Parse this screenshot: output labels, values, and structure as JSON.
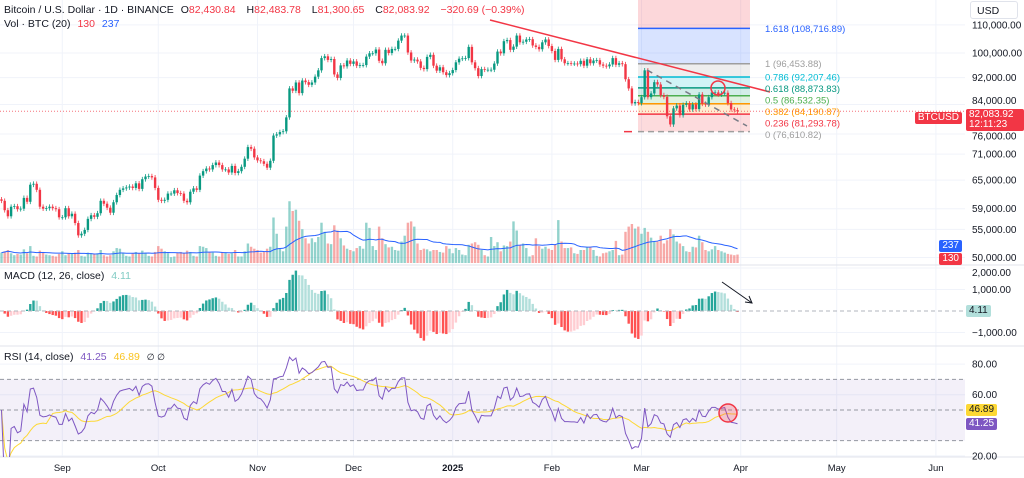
{
  "header": {
    "symbol": "Bitcoin / U.S. Dollar · 1D · BINANCE",
    "open_label": "O",
    "open": "82,430.84",
    "high_label": "H",
    "high": "82,483.78",
    "low_label": "L",
    "low": "81,300.65",
    "close_label": "C",
    "close": "82,083.92",
    "change": "−320.69 (−0.39%)",
    "vol_label": "Vol · BTC (20)",
    "vol_value": "130",
    "vol_ma": "237"
  },
  "currency_button": "USD",
  "price_tag": {
    "symbol": "BTCUSD",
    "price": "82,083.92",
    "countdown": "12:11:23"
  },
  "macd": {
    "label": "MACD (12, 26, close)",
    "value": "4.11",
    "axis": [
      "2,000.00",
      "1,000.00",
      "−1,000.00"
    ],
    "axis_values": [
      2000,
      1000,
      -1000
    ]
  },
  "rsi": {
    "label": "RSI (14, close)",
    "value": "41.25",
    "ma_value": "46.89",
    "extra": "∅ ∅",
    "axis": [
      "80.00",
      "60.00",
      "20.00"
    ],
    "axis_values": [
      80,
      60,
      20
    ],
    "bands": [
      70,
      50,
      30
    ]
  },
  "colors": {
    "up": "#089981",
    "down": "#f23645",
    "vol_ma": "#2962ff",
    "rsi": "#7e57c2",
    "rsi_ma": "#fdd835",
    "trendline": "#f23645"
  },
  "fib": {
    "levels": [
      {
        "ratio": "1.618",
        "price": 108716.89,
        "label": "1.618 (108,716.89)",
        "color": "#2962ff"
      },
      {
        "ratio": "1",
        "price": 96453.88,
        "label": "1 (96,453.88)",
        "color": "#9e9e9e"
      },
      {
        "ratio": "0.786",
        "price": 92207.46,
        "label": "0.786 (92,207.46)",
        "color": "#00bcd4"
      },
      {
        "ratio": "0.618",
        "price": 88873.83,
        "label": "0.618 (88,873.83)",
        "color": "#089981"
      },
      {
        "ratio": "0.5",
        "price": 86532.35,
        "label": "0.5 (86,532.35)",
        "color": "#4caf50"
      },
      {
        "ratio": "0.382",
        "price": 84190.87,
        "label": "0.382 (84,190.87)",
        "color": "#ff9800"
      },
      {
        "ratio": "0.236",
        "price": 81293.78,
        "label": "0.236 (81,293.78)",
        "color": "#f23645"
      },
      {
        "ratio": "0",
        "price": 76610.82,
        "label": "0 (76,610.82)",
        "color": "#9e9e9e"
      }
    ]
  },
  "chart_data": {
    "type": "candlestick",
    "title": "Bitcoin / U.S. Dollar · 1D · BINANCE",
    "start_date": "2024-08-13",
    "end_date": "2025-03-31",
    "y_scale": "log",
    "ylim": [
      48000,
      125000
    ],
    "grid": true,
    "price_ticks": [
      110000,
      100000,
      92000,
      84000,
      76000,
      71000,
      65000,
      59000,
      55000,
      50000
    ],
    "price_tick_labels": [
      "110,000.00",
      "100,000.00",
      "92,000.00",
      "84,000.00",
      "76,000.00",
      "71,000.00",
      "65,000.00",
      "59,000.00",
      "55,000.00",
      "50,000.00"
    ],
    "x_ticks": [
      {
        "label": "Sep",
        "date": "2024-09-01"
      },
      {
        "label": "Oct",
        "date": "2024-10-01"
      },
      {
        "label": "Nov",
        "date": "2024-11-01"
      },
      {
        "label": "Dec",
        "date": "2024-12-01"
      },
      {
        "label": "2025",
        "date": "2025-01-01"
      },
      {
        "label": "Feb",
        "date": "2025-02-01"
      },
      {
        "label": "Mar",
        "date": "2025-03-01"
      },
      {
        "label": "Apr",
        "date": "2025-04-01"
      },
      {
        "label": "May",
        "date": "2025-05-01"
      },
      {
        "label": "Jun",
        "date": "2025-06-01"
      }
    ],
    "closes": [
      60600,
      58700,
      57500,
      59400,
      59500,
      58900,
      59000,
      61200,
      60400,
      64000,
      64200,
      62900,
      59400,
      59000,
      59100,
      59400,
      59100,
      58900,
      57300,
      57300,
      59100,
      57500,
      58000,
      56200,
      53900,
      54200,
      54900,
      57000,
      57700,
      57400,
      58100,
      60600,
      60000,
      59200,
      58200,
      60300,
      61800,
      62900,
      63200,
      63400,
      63600,
      63300,
      64300,
      63100,
      65200,
      65800,
      65900,
      65600,
      63300,
      60800,
      60600,
      60800,
      62100,
      62100,
      62800,
      62200,
      62100,
      60600,
      60300,
      62500,
      63200,
      62900,
      66000,
      67000,
      67600,
      67400,
      68400,
      69000,
      68400,
      67400,
      67400,
      66700,
      68200,
      66600,
      67000,
      68000,
      69900,
      72700,
      72300,
      70200,
      69500,
      69300,
      68700,
      67800,
      69400,
      75600,
      75900,
      76500,
      76700,
      80400,
      88700,
      88000,
      90500,
      87300,
      91100,
      90600,
      89800,
      90500,
      92300,
      94300,
      98300,
      98900,
      97700,
      98000,
      93000,
      91900,
      95900,
      95600,
      97500,
      96400,
      97200,
      95800,
      96000,
      96000,
      98800,
      99900,
      99900,
      101200,
      97400,
      96600,
      101100,
      100000,
      101400,
      101400,
      104300,
      106100,
      106100,
      100200,
      97500,
      97800,
      97200,
      95100,
      94700,
      98700,
      99400,
      95800,
      94200,
      95300,
      93700,
      92800,
      93400,
      94400,
      96900,
      98100,
      98200,
      98300,
      102100,
      96900,
      95000,
      92500,
      94700,
      94500,
      94500,
      94500,
      96500,
      100500,
      99900,
      104100,
      104500,
      101100,
      102200,
      106100,
      103700,
      103900,
      104700,
      104800,
      102600,
      102100,
      101300,
      103700,
      104700,
      102400,
      100700,
      97700,
      101400,
      97900,
      96600,
      96600,
      96500,
      96500,
      96300,
      97400,
      95800,
      97900,
      96600,
      97500,
      97600,
      96200,
      95800,
      95600,
      96200,
      98300,
      96100,
      96600,
      96300,
      91500,
      88700,
      84300,
      84700,
      84400,
      86100,
      94300,
      86100,
      87200,
      90600,
      89900,
      86700,
      86200,
      80700,
      78500,
      82900,
      83700,
      81000,
      83900,
      84300,
      82600,
      84000,
      82700,
      86900,
      84200,
      84000,
      86100,
      87500,
      87500,
      86900,
      87200,
      87400,
      84400,
      82600,
      82400,
      82084
    ],
    "volumes": [
      160,
      180,
      200,
      150,
      120,
      140,
      130,
      210,
      150,
      260,
      110,
      100,
      190,
      170,
      130,
      120,
      110,
      100,
      140,
      180,
      120,
      150,
      140,
      160,
      200,
      110,
      100,
      160,
      150,
      140,
      150,
      200,
      120,
      100,
      120,
      180,
      230,
      220,
      150,
      110,
      100,
      150,
      170,
      150,
      190,
      160,
      110,
      100,
      170,
      260,
      220,
      180,
      150,
      90,
      100,
      160,
      170,
      150,
      190,
      170,
      110,
      100,
      260,
      250,
      230,
      170,
      160,
      110,
      100,
      170,
      160,
      140,
      150,
      200,
      100,
      100,
      180,
      300,
      250,
      220,
      200,
      160,
      170,
      220,
      250,
      700,
      450,
      230,
      180,
      560,
      950,
      800,
      820,
      650,
      520,
      380,
      300,
      380,
      320,
      400,
      620,
      480,
      300,
      290,
      580,
      500,
      380,
      270,
      220,
      200,
      180,
      230,
      260,
      220,
      620,
      540,
      260,
      200,
      560,
      380,
      290,
      240,
      250,
      200,
      190,
      330,
      420,
      620,
      640,
      560,
      300,
      200,
      220,
      210,
      180,
      200,
      200,
      170,
      160,
      260,
      220,
      150,
      230,
      200,
      130,
      120,
      280,
      300,
      320,
      280,
      200,
      120,
      100,
      400,
      260,
      320,
      180,
      270,
      260,
      330,
      640,
      500,
      280,
      300,
      230,
      100,
      120,
      380,
      260,
      220,
      250,
      220,
      200,
      290,
      660,
      330,
      230,
      230,
      240,
      150,
      140,
      200,
      200,
      240,
      240,
      200,
      110,
      100,
      150,
      160,
      180,
      200,
      340,
      120,
      130,
      480,
      560,
      600,
      530,
      560,
      450,
      540,
      480,
      390,
      340,
      330,
      420,
      300,
      350,
      520,
      440,
      330,
      300,
      260,
      180,
      170,
      250,
      240,
      420,
      320,
      200,
      180,
      210,
      260,
      200,
      180,
      160,
      140,
      130,
      120,
      130
    ]
  }
}
